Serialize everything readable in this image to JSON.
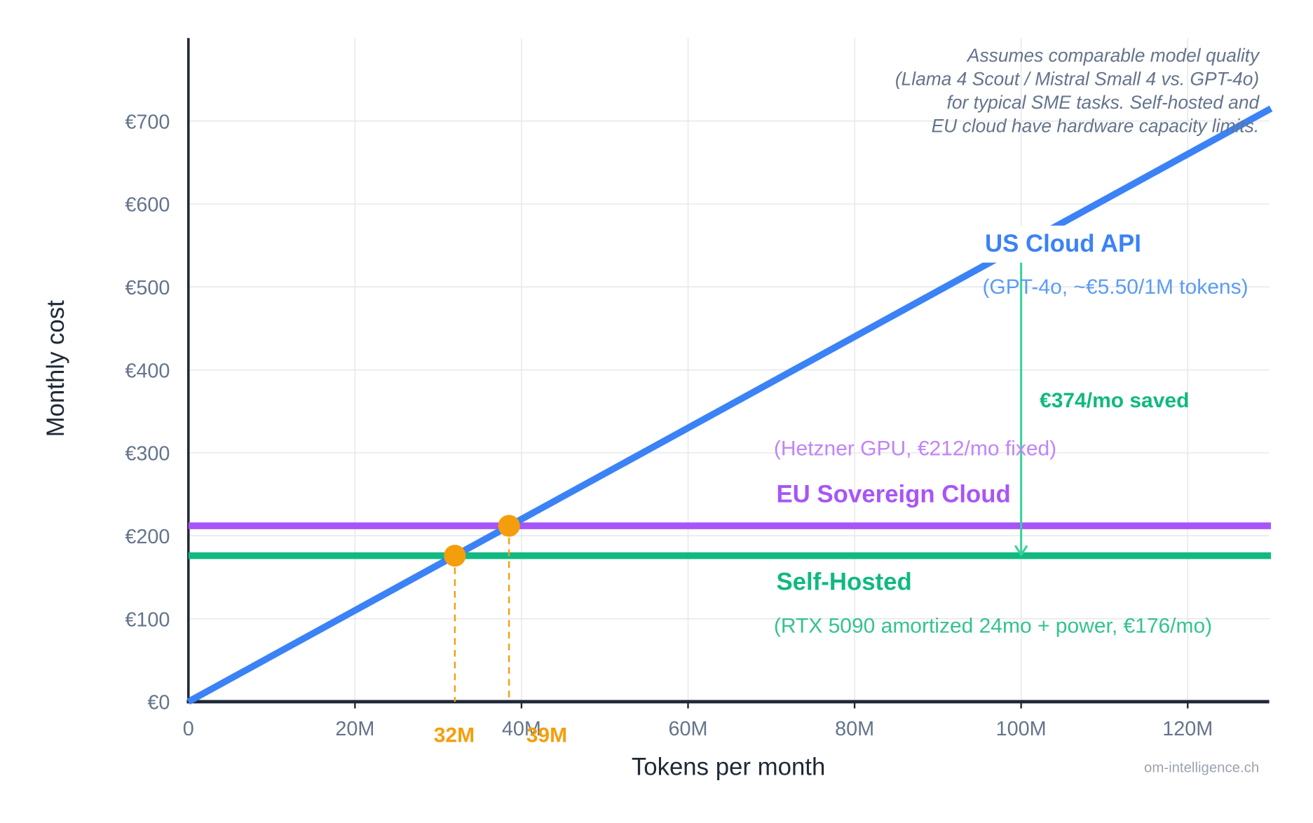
{
  "chart_data": {
    "type": "line",
    "xlabel": "Tokens per month",
    "ylabel": "Monthly cost",
    "xlim": [
      0,
      130
    ],
    "ylim": [
      0,
      800
    ],
    "x_unit": "M tokens",
    "x_ticks": [
      0,
      20,
      40,
      60,
      80,
      100,
      120
    ],
    "x_tick_labels": [
      "0",
      "20M",
      "40M",
      "60M",
      "80M",
      "100M",
      "120M"
    ],
    "y_ticks": [
      0,
      100,
      200,
      300,
      400,
      500,
      600,
      700
    ],
    "y_tick_labels": [
      "€0",
      "€100",
      "€200",
      "€300",
      "€400",
      "€500",
      "€600",
      "€700"
    ],
    "grid": true,
    "series": [
      {
        "name": "US Cloud API",
        "subtitle": "(GPT-4o, ~€5.50/1M tokens)",
        "color": "#3b82f6",
        "x": [
          0,
          130
        ],
        "y": [
          0,
          715
        ]
      },
      {
        "name": "EU Sovereign Cloud",
        "subtitle": "(Hetzner GPU, €212/mo fixed)",
        "color": "#a855f7",
        "x": [
          0,
          130
        ],
        "y": [
          212,
          212
        ]
      },
      {
        "name": "Self-Hosted",
        "subtitle": "(RTX 5090 amortized 24mo + power, €176/mo)",
        "color": "#10b981",
        "x": [
          0,
          130
        ],
        "y": [
          176,
          176
        ]
      }
    ],
    "breakeven_points": [
      {
        "x": 32,
        "y": 176,
        "label": "32M"
      },
      {
        "x": 38.5,
        "y": 212,
        "label": "39M"
      }
    ],
    "breakeven_color": "#f59e0b",
    "savings_annotation": {
      "x": 100,
      "from": 550,
      "to": 176,
      "label": "€374/mo saved",
      "color": "#34d399"
    },
    "note": [
      "Assumes comparable model quality",
      "(Llama 4 Scout / Mistral Small 4 vs. GPT-4o)",
      "for typical SME tasks.  Self-hosted and",
      "EU cloud have hardware capacity limits."
    ],
    "watermark": "om-intelligence.ch"
  }
}
